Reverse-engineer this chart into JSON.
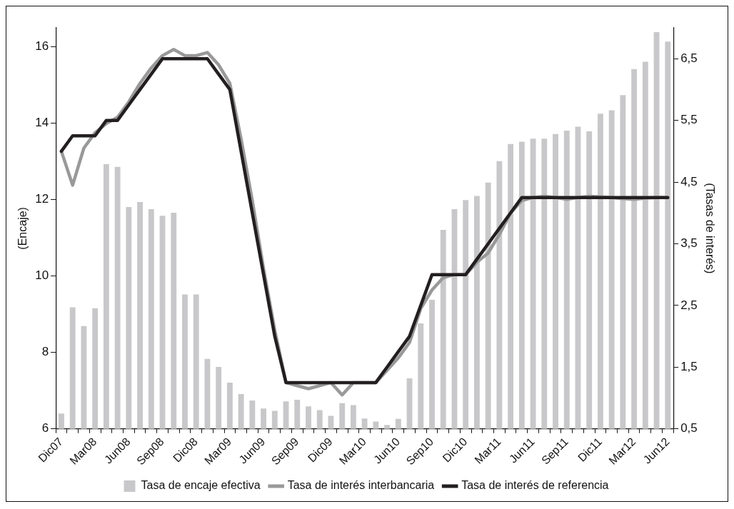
{
  "chart_data": {
    "type": "bar",
    "xlabel": null,
    "ylabel": "(Encaje)",
    "y2label": "(Tasas de interés)",
    "categories": [
      "Dic07",
      null,
      null,
      "Mar08",
      null,
      null,
      "Jun08",
      null,
      null,
      "Sep08",
      null,
      null,
      "Dic08",
      null,
      null,
      "Mar09",
      null,
      null,
      "Jun09",
      null,
      null,
      "Sep09",
      null,
      null,
      "Dic09",
      null,
      null,
      "Mar10",
      null,
      null,
      "Jun10",
      null,
      null,
      "Sep10",
      null,
      null,
      "Dic10",
      null,
      null,
      "Mar11",
      null,
      null,
      "Jun11",
      null,
      null,
      "Sep11",
      null,
      null,
      "Dic11",
      null,
      null,
      "Mar12",
      null,
      null,
      "Jun12"
    ],
    "series": [
      {
        "name": "Tasa de encaje efectiva",
        "color": "#c8c8ca",
        "values": [
          6.4,
          9.18,
          8.69,
          9.16,
          12.93,
          12.86,
          11.81,
          11.94,
          11.75,
          11.58,
          11.66,
          9.52,
          9.52,
          7.83,
          7.62,
          7.21,
          6.91,
          6.74,
          6.53,
          6.47,
          6.72,
          6.76,
          6.59,
          6.49,
          6.34,
          6.67,
          6.62,
          6.27,
          6.19,
          6.1,
          6.26,
          7.32,
          8.76,
          9.38,
          11.21,
          11.75,
          11.99,
          12.1,
          12.45,
          13.01,
          13.46,
          13.52,
          13.6,
          13.6,
          13.72,
          13.81,
          13.91,
          13.79,
          14.25,
          14.34,
          14.74,
          15.42,
          15.61,
          16.39,
          16.14
        ]
      },
      {
        "name": "Tasa de interés interbancaria",
        "type": "line",
        "axis": "y2",
        "color": "#999999",
        "values": [
          5.0,
          4.45,
          5.05,
          5.3,
          5.45,
          5.55,
          5.8,
          6.1,
          6.35,
          6.55,
          6.65,
          6.55,
          6.55,
          6.6,
          6.4,
          6.1,
          5.2,
          4.2,
          3.1,
          2.1,
          1.25,
          1.2,
          1.15,
          1.2,
          1.25,
          1.05,
          1.25,
          1.25,
          1.25,
          1.45,
          1.65,
          1.9,
          2.45,
          2.75,
          2.95,
          3.0,
          3.0,
          3.2,
          3.35,
          3.65,
          4.0,
          4.2,
          4.25,
          4.27,
          4.25,
          4.22,
          4.25,
          4.27,
          4.26,
          4.25,
          4.23,
          4.22,
          4.24,
          4.25,
          4.25
        ]
      },
      {
        "name": "Tasa de interés de referencia",
        "type": "line",
        "axis": "y2",
        "color": "#231f20",
        "values": [
          5.0,
          5.25,
          5.25,
          5.25,
          5.5,
          5.5,
          5.75,
          6.0,
          6.25,
          6.5,
          6.5,
          6.5,
          6.5,
          6.5,
          6.25,
          6.0,
          5.0,
          4.0,
          3.0,
          2.0,
          1.25,
          1.25,
          1.25,
          1.25,
          1.25,
          1.25,
          1.25,
          1.25,
          1.25,
          1.5,
          1.75,
          2.0,
          2.5,
          3.0,
          3.0,
          3.0,
          3.0,
          3.25,
          3.5,
          3.75,
          4.0,
          4.25,
          4.25,
          4.25,
          4.25,
          4.25,
          4.25,
          4.25,
          4.25,
          4.25,
          4.25,
          4.25,
          4.25,
          4.25,
          4.25
        ]
      }
    ],
    "ylim": [
      6,
      16.5
    ],
    "yticks": [
      6,
      8,
      10,
      12,
      14,
      16
    ],
    "y2lim": [
      0.5,
      7.0
    ],
    "y2ticks": [
      {
        "value": 0.5,
        "label": "0,5"
      },
      {
        "value": 1.5,
        "label": "1,5"
      },
      {
        "value": 2.5,
        "label": "2,5"
      },
      {
        "value": 3.5,
        "label": "3,5"
      },
      {
        "value": 4.5,
        "label": "4,5"
      },
      {
        "value": 5.5,
        "label": "5,5"
      },
      {
        "value": 6.5,
        "label": "6,5"
      }
    ],
    "grid": false,
    "legend": "bottom",
    "marker": "none",
    "line_style": "solid"
  }
}
